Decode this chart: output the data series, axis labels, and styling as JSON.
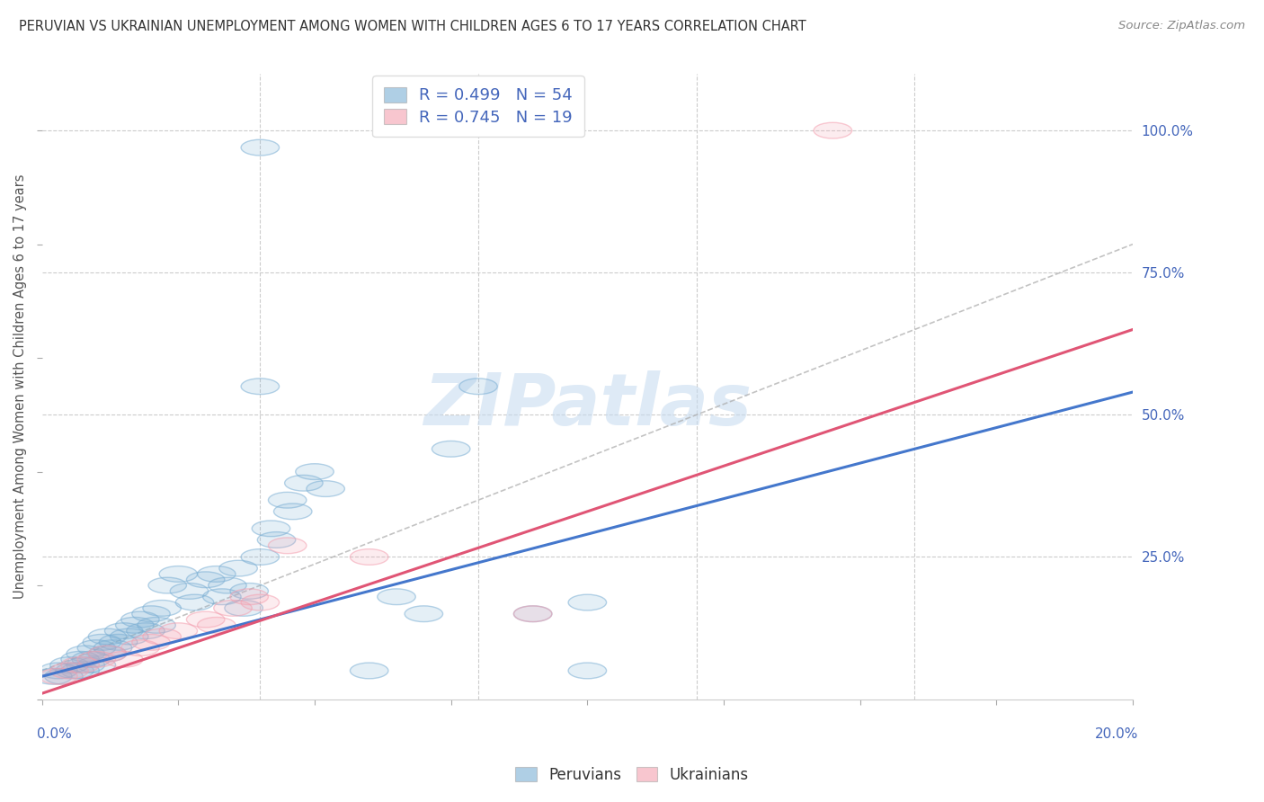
{
  "title": "PERUVIAN VS UKRAINIAN UNEMPLOYMENT AMONG WOMEN WITH CHILDREN AGES 6 TO 17 YEARS CORRELATION CHART",
  "source": "Source: ZipAtlas.com",
  "xlabel_bottom_left": "0.0%",
  "xlabel_bottom_right": "20.0%",
  "ylabel": "Unemployment Among Women with Children Ages 6 to 17 years",
  "ylabel_right_labels": [
    "100.0%",
    "75.0%",
    "50.0%",
    "25.0%"
  ],
  "ylabel_right_values": [
    1.0,
    0.75,
    0.5,
    0.25
  ],
  "legend_label1": "R = 0.499   N = 54",
  "legend_label2": "R = 0.745   N = 19",
  "legend_group1": "Peruvians",
  "legend_group2": "Ukrainians",
  "blue_color": "#7BAFD4",
  "pink_color": "#F4A0B0",
  "blue_line_color": "#4477CC",
  "pink_line_color": "#E05575",
  "title_color": "#333333",
  "source_color": "#888888",
  "axis_label_color": "#4466BB",
  "watermark_color": "#C8DCF0",
  "blue_scatter": [
    [
      0.002,
      0.04
    ],
    [
      0.003,
      0.05
    ],
    [
      0.004,
      0.04
    ],
    [
      0.005,
      0.06
    ],
    [
      0.006,
      0.05
    ],
    [
      0.007,
      0.07
    ],
    [
      0.007,
      0.05
    ],
    [
      0.008,
      0.08
    ],
    [
      0.008,
      0.06
    ],
    [
      0.009,
      0.07
    ],
    [
      0.01,
      0.09
    ],
    [
      0.01,
      0.06
    ],
    [
      0.011,
      0.1
    ],
    [
      0.012,
      0.08
    ],
    [
      0.012,
      0.11
    ],
    [
      0.013,
      0.09
    ],
    [
      0.014,
      0.1
    ],
    [
      0.015,
      0.12
    ],
    [
      0.016,
      0.11
    ],
    [
      0.017,
      0.13
    ],
    [
      0.018,
      0.14
    ],
    [
      0.019,
      0.12
    ],
    [
      0.02,
      0.15
    ],
    [
      0.021,
      0.13
    ],
    [
      0.022,
      0.16
    ],
    [
      0.023,
      0.2
    ],
    [
      0.025,
      0.22
    ],
    [
      0.027,
      0.19
    ],
    [
      0.028,
      0.17
    ],
    [
      0.03,
      0.21
    ],
    [
      0.032,
      0.22
    ],
    [
      0.033,
      0.18
    ],
    [
      0.034,
      0.2
    ],
    [
      0.036,
      0.23
    ],
    [
      0.037,
      0.16
    ],
    [
      0.038,
      0.19
    ],
    [
      0.04,
      0.25
    ],
    [
      0.042,
      0.3
    ],
    [
      0.043,
      0.28
    ],
    [
      0.045,
      0.35
    ],
    [
      0.046,
      0.33
    ],
    [
      0.048,
      0.38
    ],
    [
      0.05,
      0.4
    ],
    [
      0.052,
      0.37
    ],
    [
      0.06,
      0.05
    ],
    [
      0.065,
      0.18
    ],
    [
      0.07,
      0.15
    ],
    [
      0.075,
      0.44
    ],
    [
      0.08,
      0.55
    ],
    [
      0.04,
      0.55
    ],
    [
      0.04,
      0.97
    ],
    [
      0.09,
      0.15
    ],
    [
      0.1,
      0.17
    ],
    [
      0.1,
      0.05
    ]
  ],
  "pink_scatter": [
    [
      0.003,
      0.04
    ],
    [
      0.005,
      0.05
    ],
    [
      0.007,
      0.06
    ],
    [
      0.01,
      0.07
    ],
    [
      0.012,
      0.08
    ],
    [
      0.015,
      0.07
    ],
    [
      0.018,
      0.09
    ],
    [
      0.02,
      0.1
    ],
    [
      0.022,
      0.11
    ],
    [
      0.025,
      0.12
    ],
    [
      0.03,
      0.14
    ],
    [
      0.032,
      0.13
    ],
    [
      0.035,
      0.16
    ],
    [
      0.038,
      0.18
    ],
    [
      0.04,
      0.17
    ],
    [
      0.045,
      0.27
    ],
    [
      0.06,
      0.25
    ],
    [
      0.09,
      0.15
    ],
    [
      0.145,
      1.0
    ]
  ],
  "blue_line": [
    [
      0.0,
      0.04
    ],
    [
      0.2,
      0.54
    ]
  ],
  "pink_line": [
    [
      0.0,
      0.01
    ],
    [
      0.2,
      0.65
    ]
  ],
  "dash_line": [
    [
      0.0,
      0.05
    ],
    [
      0.2,
      0.8
    ]
  ],
  "xlim": [
    0.0,
    0.2
  ],
  "ylim": [
    0.0,
    1.1
  ],
  "xgrid_ticks": [
    0.04,
    0.08,
    0.12,
    0.16
  ],
  "ygrid_ticks": [
    0.25,
    0.5,
    0.75,
    1.0
  ]
}
